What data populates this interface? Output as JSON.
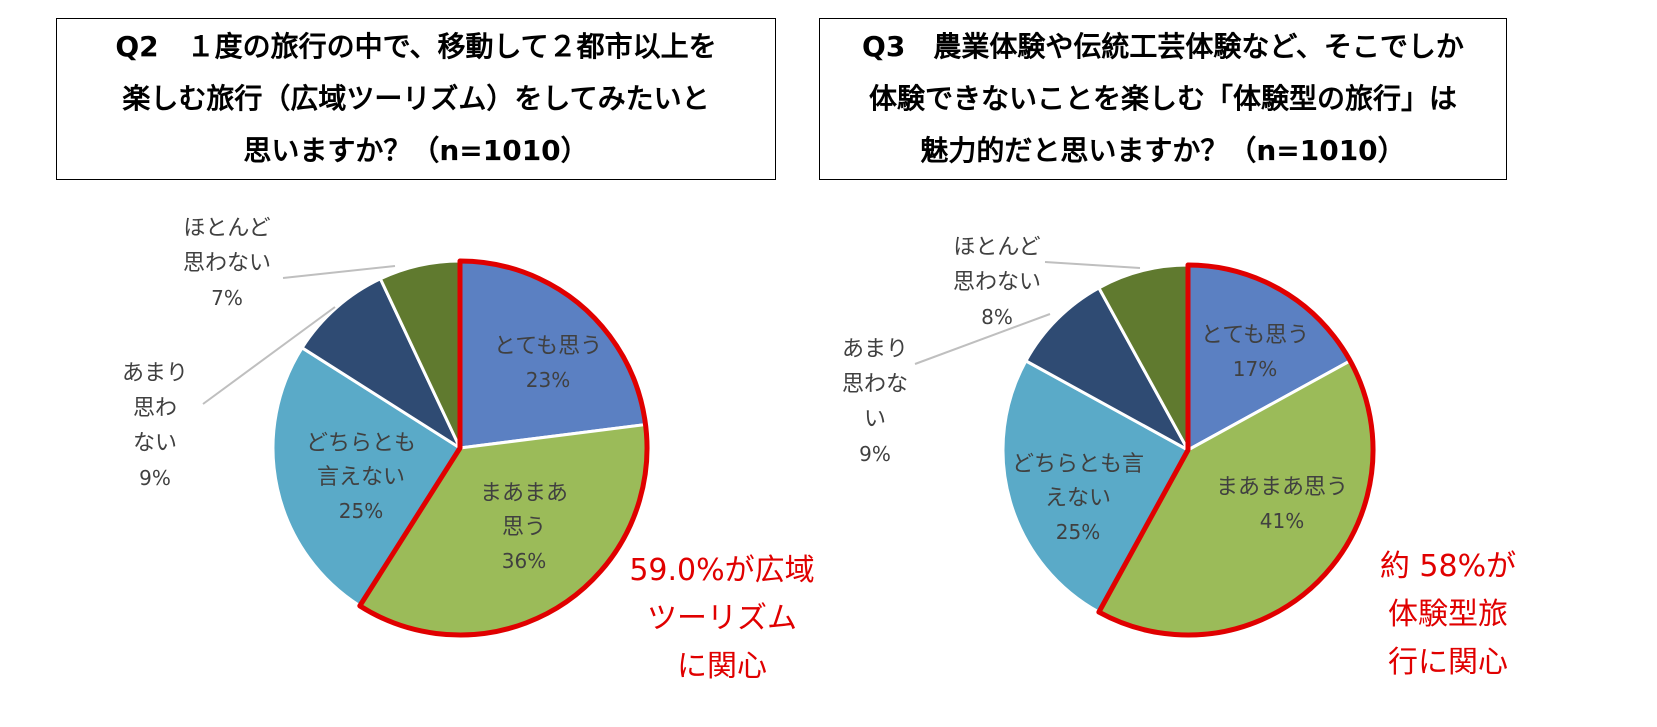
{
  "colors": {
    "very_much": "#5b80c2",
    "somewhat": "#9bbb59",
    "neither": "#5aaac8",
    "not_much": "#2f4b73",
    "hardly": "#607a2f",
    "highlight": "#e00000",
    "leader": "#bfbfbf",
    "label": "#404040"
  },
  "chart_data": [
    {
      "type": "pie",
      "title": "Q2　１度の旅行の中で、移動して２都市以上を楽しむ旅行（広域ツーリズム）をしてみたいと思いますか？（n=1010）",
      "title_lines": [
        "Q2　１度の旅行の中で、移動して２都市以上を",
        "楽しむ旅行（広域ツーリズム）をしてみたいと",
        "思いますか？（n=1010）"
      ],
      "slices": [
        {
          "key": "very_much",
          "label_lines": [
            "とても思う"
          ],
          "value": 23,
          "value_label": "23%",
          "label_position": "inside"
        },
        {
          "key": "somewhat",
          "label_lines": [
            "まあまあ",
            "思う"
          ],
          "value": 36,
          "value_label": "36%",
          "label_position": "inside"
        },
        {
          "key": "neither",
          "label_lines": [
            "どちらとも",
            "言えない"
          ],
          "value": 25,
          "value_label": "25%",
          "label_position": "inside"
        },
        {
          "key": "not_much",
          "label_lines": [
            "あまり",
            "思わ",
            "ない"
          ],
          "value": 9,
          "value_label": "9%",
          "label_position": "outside-left"
        },
        {
          "key": "hardly",
          "label_lines": [
            "ほとんど",
            "思わない"
          ],
          "value": 7,
          "value_label": "7%",
          "label_position": "outside-top-left"
        }
      ],
      "highlight_keys": [
        "very_much",
        "somewhat"
      ],
      "callout_lines": [
        "59.0%が広域",
        "ツーリズム",
        "に関心"
      ]
    },
    {
      "type": "pie",
      "title": "Q3　農業体験や伝統工芸体験など、そこでしか体験できないことを楽しむ「体験型の旅行」は魅力的だと思いますか？（n=1010）",
      "title_lines": [
        "Q3　農業体験や伝統工芸体験など、そこでしか",
        "体験できないことを楽しむ「体験型の旅行」は",
        "魅力的だと思いますか？（n=1010）"
      ],
      "slices": [
        {
          "key": "very_much",
          "label_lines": [
            "とても思う"
          ],
          "value": 17,
          "value_label": "17%",
          "label_position": "inside"
        },
        {
          "key": "somewhat",
          "label_lines": [
            "まあまあ思う"
          ],
          "value": 41,
          "value_label": "41%",
          "label_position": "inside"
        },
        {
          "key": "neither",
          "label_lines": [
            "どちらとも言",
            "えない"
          ],
          "value": 25,
          "value_label": "25%",
          "label_position": "inside"
        },
        {
          "key": "not_much",
          "label_lines": [
            "あまり",
            "思わな",
            "い"
          ],
          "value": 9,
          "value_label": "9%",
          "label_position": "outside-left"
        },
        {
          "key": "hardly",
          "label_lines": [
            "ほとんど",
            "思わない"
          ],
          "value": 8,
          "value_label": "8%",
          "label_position": "outside-top-left"
        }
      ],
      "highlight_keys": [
        "very_much",
        "somewhat"
      ],
      "callout_lines": [
        "約 58%が",
        "体験型旅",
        "行に関心"
      ]
    }
  ]
}
